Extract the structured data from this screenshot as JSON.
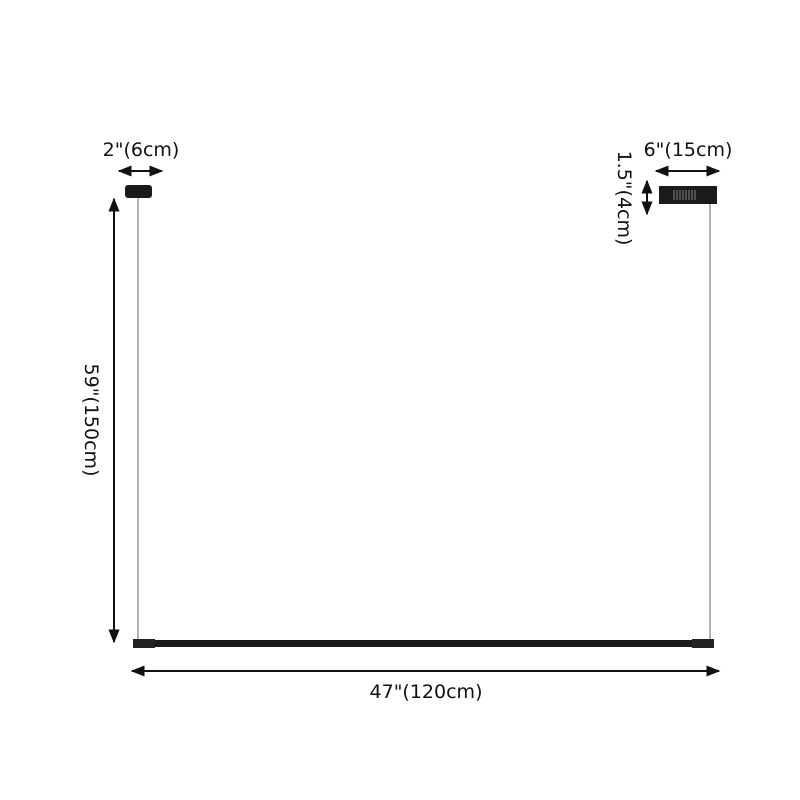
{
  "labels": {
    "canopy_small_width": "2\"(6cm)",
    "canopy_large_width": "6\"(15cm)",
    "canopy_large_height": "1.5\"(4cm)",
    "hanging_height": "59\"(150cm)",
    "bar_length": "47\"(120cm)"
  },
  "colors": {
    "fixture": "#1a1a1a",
    "wire": "#9a9a9a",
    "arrow": "#111111"
  }
}
